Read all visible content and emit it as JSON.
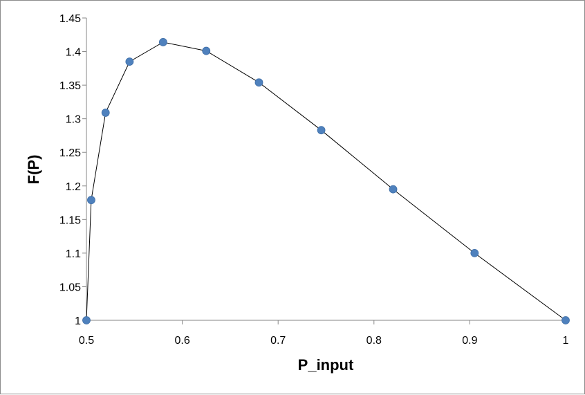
{
  "chart_data": {
    "type": "scatter",
    "title": "",
    "xlabel": "P_input",
    "ylabel": "F(P)",
    "xlim": [
      0.5,
      1.0
    ],
    "ylim": [
      1.0,
      1.45
    ],
    "x_ticks": [
      0.5,
      0.6,
      0.7,
      0.8,
      0.9,
      1.0
    ],
    "x_tick_labels": [
      "0.5",
      "0.6",
      "0.7",
      "0.8",
      "0.9",
      "1"
    ],
    "y_ticks": [
      1.0,
      1.05,
      1.1,
      1.15,
      1.2,
      1.25,
      1.3,
      1.35,
      1.4,
      1.45
    ],
    "y_tick_labels": [
      "1",
      "1.05",
      "1.1",
      "1.15",
      "1.2",
      "1.25",
      "1.3",
      "1.35",
      "1.4",
      "1.45"
    ],
    "grid": false,
    "legend": false,
    "series": [
      {
        "x": [
          0.5,
          0.505,
          0.52,
          0.545,
          0.58,
          0.625,
          0.68,
          0.745,
          0.82,
          0.905,
          1.0
        ],
        "y": [
          1.0,
          1.179,
          1.309,
          1.385,
          1.414,
          1.401,
          1.354,
          1.283,
          1.195,
          1.1,
          1.0
        ],
        "marker_color": "#4f81bd",
        "line_color": "#000000"
      }
    ]
  }
}
